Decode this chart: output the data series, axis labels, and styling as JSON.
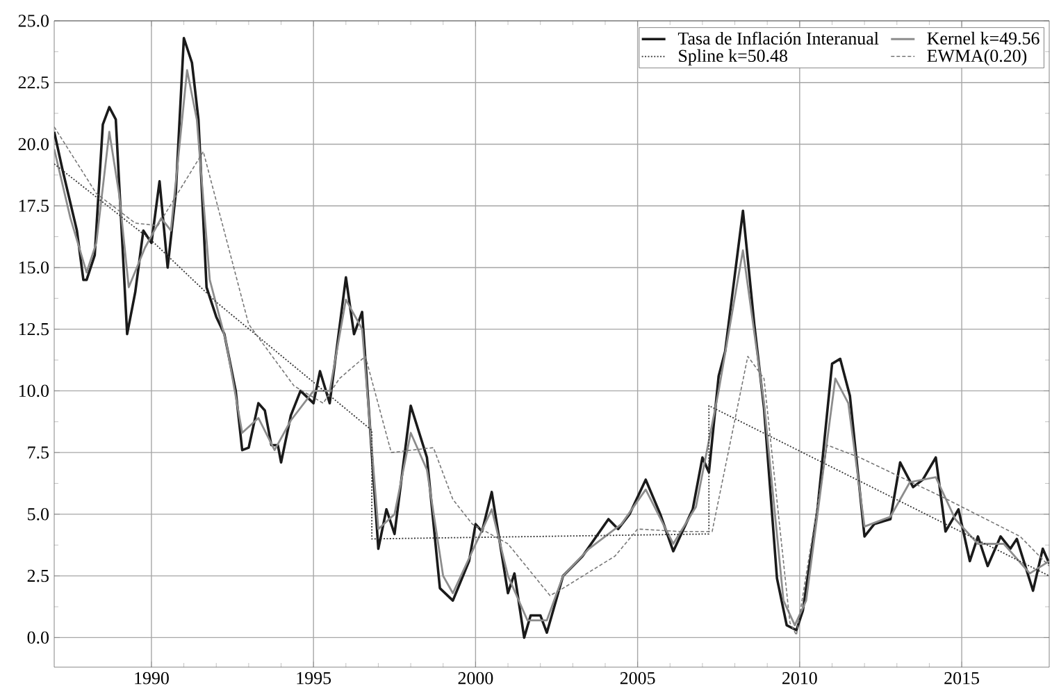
{
  "chart_data": {
    "type": "line",
    "xlim": [
      1987.0,
      2017.7
    ],
    "ylim": [
      -1.2,
      25
    ],
    "xticks": [
      1990,
      1995,
      2000,
      2005,
      2010,
      2015
    ],
    "yticks": [
      {
        "value": 0,
        "label": "0.0"
      },
      {
        "value": 2.5,
        "label": "2.5"
      },
      {
        "value": 5,
        "label": "5.0"
      },
      {
        "value": 7.5,
        "label": "7.5"
      },
      {
        "value": 10,
        "label": "10.0"
      },
      {
        "value": 12.5,
        "label": "12.5"
      },
      {
        "value": 15,
        "label": "15.0"
      },
      {
        "value": 17.5,
        "label": "17.5"
      },
      {
        "value": 20,
        "label": "20.0"
      },
      {
        "value": 22.5,
        "label": "22.5"
      },
      {
        "value": 25,
        "label": "25.0"
      }
    ],
    "grid": true,
    "legend": "top right",
    "marker": "none",
    "series": [
      {
        "name": "Tasa de Inflación Interanual",
        "color": "#1a1a1a",
        "line_style": "solid",
        "x": [
          1987.0,
          1987.25,
          1987.7,
          1987.9,
          1988.0,
          1988.25,
          1988.5,
          1988.7,
          1988.9,
          1989.25,
          1989.5,
          1989.75,
          1990.0,
          1990.25,
          1990.5,
          1990.75,
          1991.0,
          1991.25,
          1991.45,
          1991.7,
          1992.0,
          1992.25,
          1992.6,
          1992.8,
          1993.0,
          1993.3,
          1993.5,
          1993.7,
          1993.9,
          1994.0,
          1994.3,
          1994.6,
          1995.0,
          1995.2,
          1995.5,
          1996.0,
          1996.25,
          1996.5,
          1997.0,
          1997.25,
          1997.5,
          1998.0,
          1998.5,
          1998.9,
          1999.3,
          1999.8,
          2000.0,
          2000.2,
          2000.5,
          2001.0,
          2001.2,
          2001.5,
          2001.7,
          2002.0,
          2002.2,
          2002.7,
          2003.3,
          2004.1,
          2004.4,
          2004.75,
          2005.25,
          2005.7,
          2006.1,
          2006.7,
          2007.0,
          2007.2,
          2007.5,
          2007.7,
          2008.25,
          2008.6,
          2008.9,
          2009.3,
          2009.6,
          2009.9,
          2010.1,
          2010.55,
          2011.0,
          2011.25,
          2011.55,
          2012.0,
          2012.3,
          2012.8,
          2013.1,
          2013.5,
          2013.8,
          2014.2,
          2014.5,
          2014.9,
          2015.25,
          2015.5,
          2015.8,
          2016.2,
          2016.5,
          2016.7,
          2017.2,
          2017.5,
          2017.7
        ],
        "values": [
          20.5,
          19,
          16.5,
          14.5,
          14.5,
          15.5,
          20.8,
          21.5,
          21,
          12.3,
          14,
          16.5,
          16,
          18.5,
          15,
          18,
          24.3,
          23.3,
          21,
          14.2,
          13,
          12.3,
          10,
          7.6,
          7.7,
          9.5,
          9.2,
          7.8,
          7.8,
          7.1,
          9,
          10,
          9.5,
          10.8,
          9.5,
          14.6,
          12.3,
          13.2,
          3.6,
          5.2,
          4.2,
          9.4,
          7.3,
          2.0,
          1.5,
          3.1,
          4.6,
          4.3,
          5.9,
          1.8,
          2.6,
          0.0,
          0.9,
          0.9,
          0.2,
          2.5,
          3.3,
          4.8,
          4.4,
          5.0,
          6.4,
          5.0,
          3.5,
          5.2,
          7.3,
          6.7,
          10.6,
          11.6,
          17.3,
          12.7,
          9.3,
          2.4,
          0.5,
          0.3,
          1.1,
          5.2,
          11.1,
          11.3,
          9.8,
          4.1,
          4.6,
          4.8,
          7.1,
          6.1,
          6.4,
          7.3,
          4.3,
          5.2,
          3.1,
          4.1,
          2.9,
          4.1,
          3.6,
          4.0,
          1.9,
          3.6,
          3.0
        ]
      },
      {
        "name": "Kernel k=49.56",
        "color": "#8c8c8c",
        "line_style": "solid",
        "x": [
          1987.0,
          1987.5,
          1988.0,
          1988.3,
          1988.7,
          1989.0,
          1989.3,
          1989.8,
          1990.3,
          1990.6,
          1991.1,
          1991.4,
          1991.8,
          1992.3,
          1992.8,
          1993.3,
          1993.8,
          1994.3,
          1995.0,
          1995.5,
          1996.0,
          1996.5,
          1997.0,
          1997.5,
          1998.0,
          1998.5,
          1999.0,
          1999.3,
          1999.9,
          2000.5,
          2001.0,
          2001.6,
          2002.2,
          2002.7,
          2003.5,
          2004.5,
          2005.25,
          2006.1,
          2006.8,
          2007.5,
          2008.25,
          2008.9,
          2009.5,
          2009.85,
          2010.2,
          2010.6,
          2011.1,
          2011.5,
          2012.0,
          2012.8,
          2013.4,
          2014.2,
          2014.8,
          2015.5,
          2016.3,
          2017.1,
          2017.7
        ],
        "values": [
          19.8,
          17.0,
          14.8,
          16,
          20.5,
          18,
          14.2,
          15.8,
          17,
          16.5,
          23,
          21,
          14.5,
          12,
          8.3,
          8.9,
          7.6,
          8.8,
          10,
          10,
          13.7,
          12.5,
          4.4,
          5,
          8.3,
          6.8,
          2.5,
          1.8,
          3.5,
          5.2,
          2.5,
          0.7,
          0.7,
          2.5,
          3.6,
          4.6,
          6.0,
          3.8,
          5.3,
          10,
          15.7,
          9.5,
          1.5,
          0.5,
          1.5,
          5.5,
          10.5,
          9.5,
          4.5,
          4.9,
          6.3,
          6.5,
          4.8,
          3.8,
          3.8,
          2.6,
          3.1
        ]
      },
      {
        "name": "Spline k=50.48",
        "color": "#333333",
        "line_style": "dotted",
        "x": [
          1987.0,
          1990.0,
          1992.0,
          1996.8,
          1996.8,
          2007.2,
          2007.2,
          2017.7
        ],
        "values": [
          19.2,
          16.1,
          13.6,
          8.4,
          4.0,
          4.2,
          9.4,
          2.5
        ]
      },
      {
        "name": "EWMA(0.20)",
        "color": "#777777",
        "line_style": "dashed",
        "x": [
          1987.0,
          1988.3,
          1989.5,
          1990.2,
          1991.6,
          1993.0,
          1994.4,
          1995.3,
          1995.8,
          1996.6,
          1997.4,
          1998.7,
          1999.3,
          1999.9,
          2001.0,
          2002.3,
          2002.7,
          2004.3,
          2005.0,
          2006.3,
          2007.3,
          2008.4,
          2008.9,
          2009.7,
          2009.9,
          2010.85,
          2011.85,
          2014.4,
          2016.8,
          2017.7
        ],
        "values": [
          20.7,
          18.0,
          16.8,
          16.7,
          19.7,
          12.7,
          10.2,
          9.5,
          10.5,
          11.4,
          7.5,
          7.7,
          5.6,
          4.6,
          3.8,
          1.7,
          2.0,
          3.3,
          4.4,
          4.3,
          4.3,
          11.4,
          10.5,
          0.6,
          0.1,
          7.8,
          7.3,
          5.7,
          4.1,
          2.9
        ]
      }
    ]
  }
}
